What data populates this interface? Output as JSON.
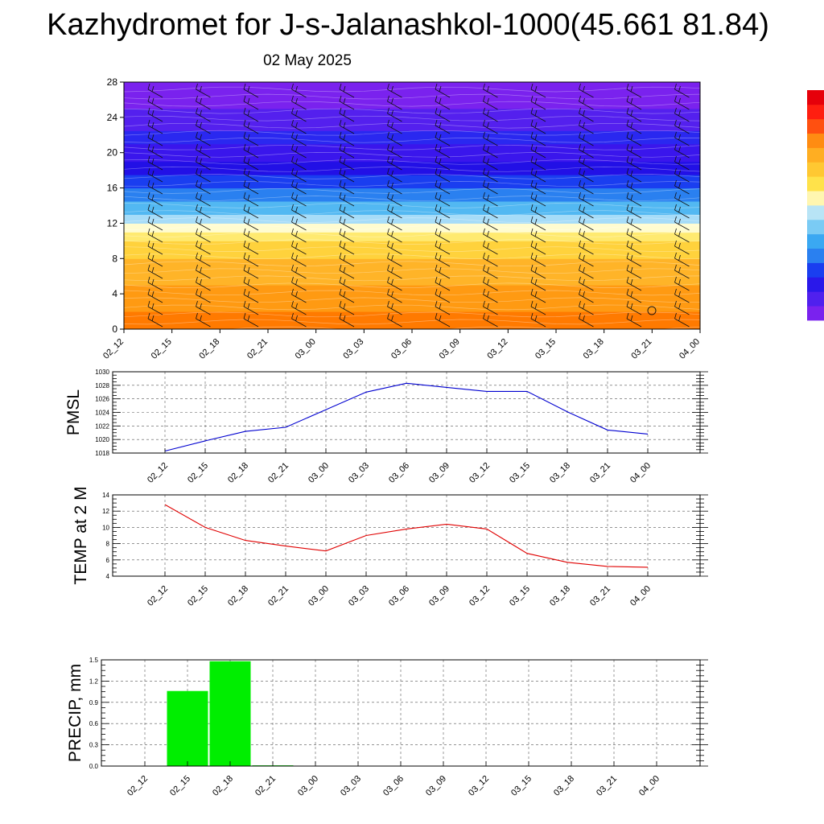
{
  "title": "Kazhydromet for J-s-Jalanashkol-1000(45.661 81.84)",
  "date": "02 May 2025",
  "chart_data": [
    {
      "type": "heatmap",
      "name": "height-time section",
      "x_ticks": [
        "02_12",
        "02_15",
        "02_18",
        "02_21",
        "03_00",
        "03_03",
        "03_06",
        "03_09",
        "03_12",
        "03_15",
        "03_18",
        "03_21",
        "04_00"
      ],
      "y_ticks": [
        0,
        4,
        8,
        12,
        16,
        20,
        24,
        28
      ],
      "ylim": [
        0,
        28
      ],
      "color_layers": [
        {
          "from": 0,
          "to": 2,
          "color": "#ff7a00"
        },
        {
          "from": 2,
          "to": 5,
          "color": "#ff9a12"
        },
        {
          "from": 5,
          "to": 8,
          "color": "#ffb428"
        },
        {
          "from": 8,
          "to": 10,
          "color": "#ffd23c"
        },
        {
          "from": 10,
          "to": 11,
          "color": "#ffea70"
        },
        {
          "from": 11,
          "to": 12,
          "color": "#fffcd0"
        },
        {
          "from": 12,
          "to": 13,
          "color": "#a6dcf8"
        },
        {
          "from": 13,
          "to": 14.5,
          "color": "#52b8f2"
        },
        {
          "from": 14.5,
          "to": 16,
          "color": "#2a80f0"
        },
        {
          "from": 16,
          "to": 17.5,
          "color": "#1a3ef0"
        },
        {
          "from": 17.5,
          "to": 19,
          "color": "#2210e6"
        },
        {
          "from": 19,
          "to": 21,
          "color": "#3a16ec"
        },
        {
          "from": 21,
          "to": 22.5,
          "color": "#2a28f0"
        },
        {
          "from": 22.5,
          "to": 25,
          "color": "#5420ee"
        },
        {
          "from": 25,
          "to": 28,
          "color": "#7a22ee"
        }
      ],
      "colorbar": [
        "#7a22ee",
        "#5020ee",
        "#2a18ea",
        "#1a3ef0",
        "#2a80f0",
        "#3aa8f2",
        "#7acbf4",
        "#b8e4f6",
        "#fff6b0",
        "#ffe24a",
        "#ffc832",
        "#ffae22",
        "#ff8c12",
        "#ff5010",
        "#ff1e10",
        "#e6000a"
      ]
    },
    {
      "type": "line",
      "ylabel": "PMSL",
      "categories": [
        "02_12",
        "02_15",
        "02_18",
        "02_21",
        "03_00",
        "03_03",
        "03_06",
        "03_09",
        "03_12",
        "03_15",
        "03_18",
        "03_21",
        "04_00"
      ],
      "values": [
        1018.3,
        1019.8,
        1021.2,
        1021.8,
        1024.4,
        1027.0,
        1028.3,
        1027.7,
        1027.1,
        1027.1,
        1024.1,
        1021.4,
        1020.8
      ],
      "ylim": [
        1018,
        1030
      ],
      "y_ticks": [
        1018,
        1020,
        1022,
        1024,
        1026,
        1028,
        1030
      ],
      "color": "#0000d0",
      "grid": true
    },
    {
      "type": "line",
      "ylabel": "TEMP at 2 M",
      "categories": [
        "02_12",
        "02_15",
        "02_18",
        "02_21",
        "03_00",
        "03_03",
        "03_06",
        "03_09",
        "03_12",
        "03_15",
        "03_18",
        "03_21",
        "04_00"
      ],
      "values": [
        12.8,
        10.0,
        8.4,
        7.7,
        7.1,
        9.0,
        9.8,
        10.4,
        9.8,
        6.8,
        5.7,
        5.2,
        5.1
      ],
      "ylim": [
        4,
        14
      ],
      "y_ticks": [
        4,
        6,
        8,
        10,
        12,
        14
      ],
      "color": "#e00000",
      "grid": true
    },
    {
      "type": "bar",
      "ylabel": "PRECIP, mm",
      "categories": [
        "02_12",
        "02_15",
        "02_18",
        "02_21",
        "03_00",
        "03_03",
        "03_06",
        "03_09",
        "03_12",
        "03_15",
        "03_18",
        "03_21",
        "04_00"
      ],
      "values": [
        0,
        1.06,
        1.48,
        0.01,
        0,
        0,
        0,
        0,
        0,
        0,
        0,
        0,
        0
      ],
      "ylim": [
        0,
        1.5
      ],
      "y_ticks": [
        "0.0",
        "0.3",
        "0.6",
        "0.9",
        "1.2",
        "1.5"
      ],
      "color": "#00ee00",
      "grid": true
    }
  ]
}
